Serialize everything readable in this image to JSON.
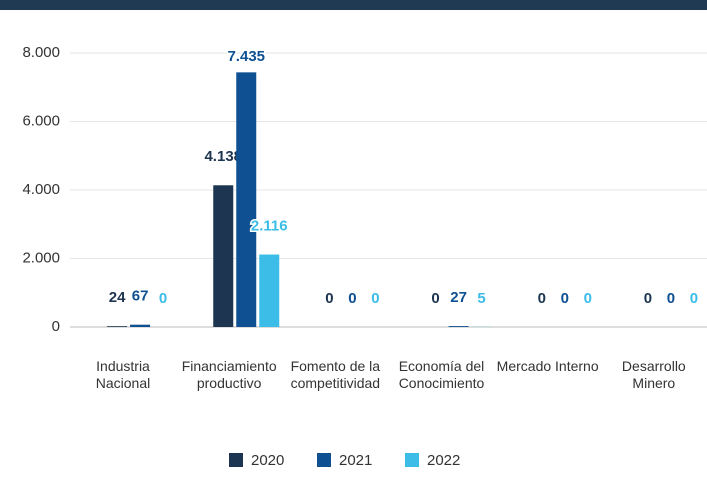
{
  "chart_data": {
    "type": "bar",
    "categories": [
      "Industria Nacional",
      "Financiamiento productivo",
      "Fomento de la competitividad",
      "Economía del Conocimiento",
      "Mercado Interno",
      "Desarrollo Minero"
    ],
    "series": [
      {
        "name": "2020",
        "color": "#1d3550",
        "values": [
          24,
          4138,
          0,
          0,
          0,
          0
        ],
        "value_labels": [
          "24",
          "4.138",
          "0",
          "0",
          "0",
          "0"
        ]
      },
      {
        "name": "2021",
        "color": "#0f5092",
        "values": [
          67,
          7435,
          0,
          27,
          0,
          0
        ],
        "value_labels": [
          "67",
          "7.435",
          "0",
          "27",
          "0",
          "0"
        ]
      },
      {
        "name": "2022",
        "color": "#3bbde8",
        "values": [
          0,
          2116,
          0,
          5,
          0,
          0
        ],
        "value_labels": [
          "0",
          "2.116",
          "0",
          "5",
          "0",
          "0"
        ]
      }
    ],
    "ylim": [
      0,
      8000
    ],
    "yticks": [
      0,
      {
        "value": 2000,
        "label": "2.000"
      },
      {
        "value": 4000,
        "label": "4.000"
      },
      {
        "value": 6000,
        "label": "6.000"
      },
      {
        "value": 8000,
        "label": "8.000"
      }
    ],
    "grid": true,
    "legend": "bottom"
  }
}
